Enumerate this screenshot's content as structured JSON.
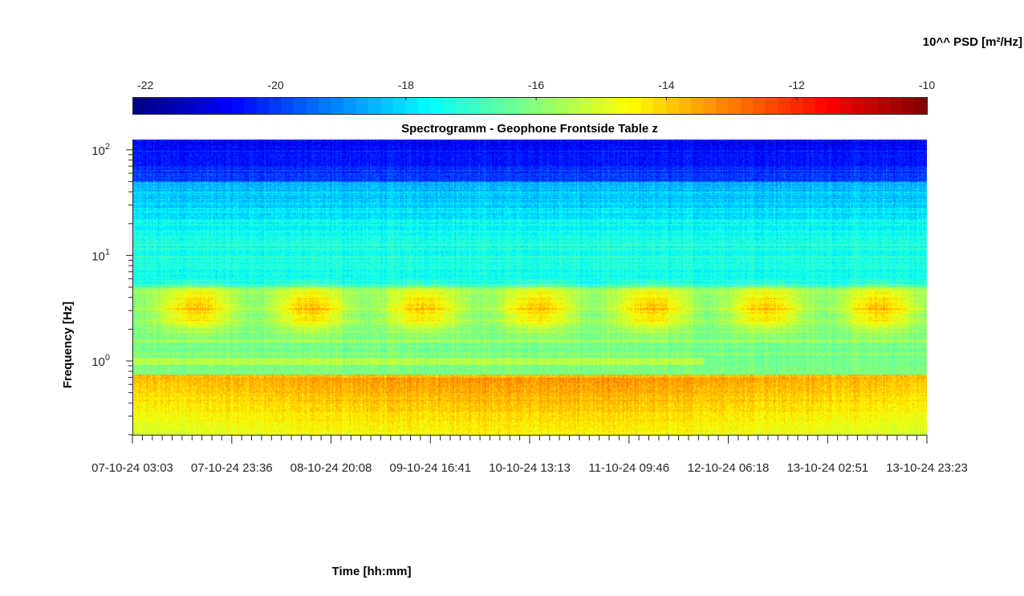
{
  "chart_data": {
    "type": "heatmap",
    "title": "Spectrogramm - Geophone Frontside Table z",
    "xlabel": "Time [hh:mm]",
    "ylabel": "Frequency [Hz]",
    "colorbar": {
      "label": "10^^ PSD [m²/Hz]",
      "ticks": [
        "-22",
        "-20",
        "-18",
        "-16",
        "-14",
        "-12",
        "-10"
      ],
      "range": [
        -22.2,
        -10
      ],
      "colormap": "jet",
      "location": "top"
    },
    "x_ticks": [
      "07-10-24 03:03",
      "07-10-24 23:36",
      "08-10-24 20:08",
      "09-10-24 16:41",
      "10-10-24 13:13",
      "11-10-24 09:46",
      "12-10-24 06:18",
      "13-10-24 02:51",
      "13-10-24 23:23"
    ],
    "y_scale": "log",
    "y_range": [
      0.2,
      125
    ],
    "y_ticks": [
      {
        "base": "10",
        "exp": "0",
        "value": 1
      },
      {
        "base": "10",
        "exp": "1",
        "value": 10
      },
      {
        "base": "10",
        "exp": "2",
        "value": 100
      }
    ],
    "description_values": {
      "daily_bursts_hz": [
        2,
        5
      ],
      "daily_burst_count": 7,
      "low_freq_high_psd_below_hz": 0.7,
      "line_at_hz": 1.0
    }
  }
}
